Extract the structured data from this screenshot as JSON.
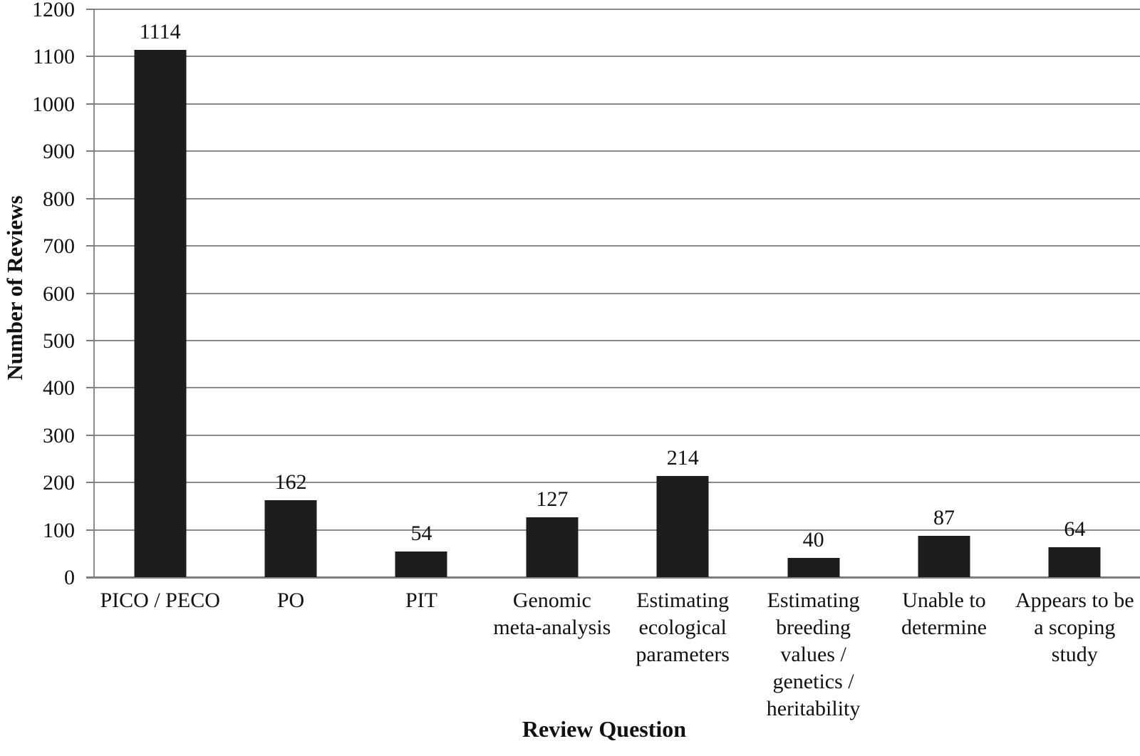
{
  "chart_data": {
    "type": "bar",
    "title": "",
    "xlabel": "Review Question",
    "ylabel": "Number of Reviews",
    "categories": [
      "PICO / PECO",
      "PO",
      "PIT",
      "Genomic meta-analysis",
      "Estimating ecological parameters",
      "Estimating breeding values / genetics / heritability",
      "Unable to determine",
      "Appears to be a scoping study"
    ],
    "category_lines": [
      [
        "PICO / PECO"
      ],
      [
        "PO"
      ],
      [
        "PIT"
      ],
      [
        "Genomic",
        "meta-analysis"
      ],
      [
        "Estimating",
        "ecological",
        "parameters"
      ],
      [
        "Estimating",
        "breeding",
        "values /",
        "genetics /",
        "heritability"
      ],
      [
        "Unable to",
        "determine"
      ],
      [
        "Appears to be",
        "a scoping",
        "study"
      ]
    ],
    "values": [
      1114,
      162,
      54,
      127,
      214,
      40,
      87,
      64
    ],
    "ylim": [
      0,
      1200
    ],
    "yticks": [
      0,
      100,
      200,
      300,
      400,
      500,
      600,
      700,
      800,
      900,
      1000,
      1100,
      1200
    ],
    "grid": "horizontal",
    "legend": "none",
    "colors": {
      "bar": "#1d1d1d",
      "gridline": "#8a8a8a",
      "axis": "#7d7d7d",
      "text": "#111111"
    }
  }
}
